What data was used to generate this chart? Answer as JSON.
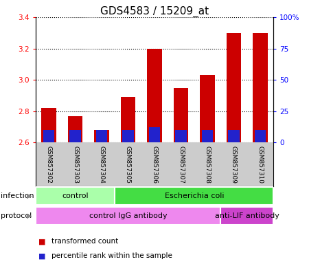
{
  "title": "GDS4583 / 15209_at",
  "samples": [
    "GSM857302",
    "GSM857303",
    "GSM857304",
    "GSM857305",
    "GSM857306",
    "GSM857307",
    "GSM857308",
    "GSM857309",
    "GSM857310"
  ],
  "transformed_count": [
    2.82,
    2.77,
    2.68,
    2.89,
    3.2,
    2.95,
    3.03,
    3.3,
    3.3
  ],
  "percentile_base": 2.6,
  "percentile_rank_scaled": [
    0.08,
    0.08,
    0.08,
    0.08,
    0.1,
    0.08,
    0.08,
    0.08,
    0.08
  ],
  "ylim_left": [
    2.6,
    3.4
  ],
  "ylim_right": [
    0,
    100
  ],
  "yticks_left": [
    2.6,
    2.8,
    3.0,
    3.2,
    3.4
  ],
  "yticks_right": [
    0,
    25,
    50,
    75,
    100
  ],
  "ytick_labels_right": [
    "0",
    "25",
    "50",
    "75",
    "100%"
  ],
  "bar_color_red": "#cc0000",
  "bar_color_blue": "#2222cc",
  "bar_width": 0.55,
  "infection_groups": [
    {
      "label": "control",
      "start": 0,
      "end": 3,
      "color": "#aaffaa"
    },
    {
      "label": "Escherichia coli",
      "start": 3,
      "end": 9,
      "color": "#44dd44"
    }
  ],
  "protocol_groups": [
    {
      "label": "control IgG antibody",
      "start": 0,
      "end": 7,
      "color": "#ee88ee"
    },
    {
      "label": "anti-LIF antibody",
      "start": 7,
      "end": 9,
      "color": "#cc44cc"
    }
  ],
  "legend_items": [
    {
      "color": "#cc0000",
      "label": "transformed count"
    },
    {
      "color": "#2222cc",
      "label": "percentile rank within the sample"
    }
  ],
  "xlabel_infection": "infection",
  "xlabel_protocol": "protocol",
  "bg_color_samples": "#cccccc",
  "title_fontsize": 11
}
